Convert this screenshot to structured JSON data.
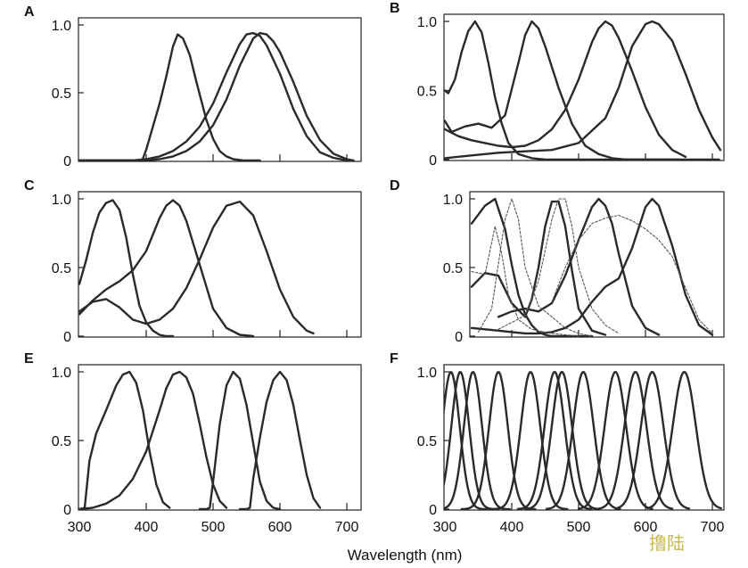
{
  "figure": {
    "xlabel": "Wavelength (nm)",
    "watermark": "撸陆"
  },
  "chart_data": [
    {
      "type": "line",
      "panel": "A",
      "xlim": [
        300,
        710
      ],
      "ylim": [
        0,
        1.0
      ],
      "xticks": [
        300,
        400,
        500,
        600,
        700
      ],
      "yticks": [
        "0",
        "0.5",
        "1.0"
      ],
      "series": [
        {
          "style": "solid",
          "x": [
            300,
            394,
            400,
            410,
            420,
            430,
            440,
            447,
            455,
            465,
            475,
            490,
            500,
            510,
            520,
            530,
            545,
            560,
            570
          ],
          "y": [
            0,
            0,
            0.08,
            0.25,
            0.42,
            0.62,
            0.84,
            0.93,
            0.9,
            0.78,
            0.58,
            0.3,
            0.16,
            0.07,
            0.03,
            0.01,
            0,
            0,
            0
          ]
        },
        {
          "style": "solid",
          "x": [
            300,
            380,
            400,
            420,
            440,
            460,
            480,
            500,
            520,
            540,
            550,
            560,
            570,
            580,
            600,
            620,
            640,
            660,
            680,
            700,
            710
          ],
          "y": [
            0,
            0,
            0.01,
            0.03,
            0.07,
            0.14,
            0.25,
            0.42,
            0.65,
            0.86,
            0.93,
            0.94,
            0.92,
            0.85,
            0.64,
            0.38,
            0.18,
            0.06,
            0.02,
            0,
            0
          ]
        },
        {
          "style": "solid",
          "x": [
            300,
            400,
            420,
            440,
            460,
            480,
            500,
            520,
            540,
            560,
            570,
            580,
            590,
            600,
            620,
            640,
            660,
            680,
            700,
            710
          ],
          "y": [
            0,
            0,
            0.01,
            0.03,
            0.07,
            0.14,
            0.26,
            0.45,
            0.7,
            0.9,
            0.94,
            0.93,
            0.88,
            0.8,
            0.58,
            0.33,
            0.15,
            0.05,
            0.01,
            0
          ]
        }
      ]
    },
    {
      "type": "line",
      "panel": "B",
      "xlim": [
        300,
        710
      ],
      "ylim": [
        0,
        1.0
      ],
      "xticks": [
        300,
        400,
        500,
        600,
        700
      ],
      "yticks": [
        "0",
        "0.5",
        "1.0"
      ],
      "series": [
        {
          "style": "solid",
          "x": [
            300,
            305,
            315,
            325,
            335,
            345,
            355,
            365,
            375,
            385,
            395,
            410,
            430,
            450,
            480,
            710
          ],
          "y": [
            0.5,
            0.48,
            0.58,
            0.78,
            0.93,
            1.0,
            0.92,
            0.7,
            0.45,
            0.26,
            0.12,
            0.04,
            0.01,
            0,
            0,
            0
          ]
        },
        {
          "style": "solid",
          "x": [
            300,
            310,
            330,
            350,
            370,
            390,
            410,
            420,
            430,
            440,
            450,
            470,
            490,
            510,
            530,
            550,
            570,
            590,
            610,
            630,
            650
          ],
          "y": [
            0.28,
            0.2,
            0.24,
            0.26,
            0.23,
            0.32,
            0.7,
            0.9,
            1.0,
            0.95,
            0.82,
            0.52,
            0.26,
            0.1,
            0.04,
            0.01,
            0,
            0,
            0,
            0,
            0
          ]
        },
        {
          "style": "solid",
          "x": [
            300,
            320,
            340,
            360,
            380,
            400,
            420,
            440,
            460,
            480,
            500,
            520,
            530,
            540,
            550,
            560,
            580,
            600,
            620,
            640,
            660
          ],
          "y": [
            0.22,
            0.17,
            0.14,
            0.12,
            0.1,
            0.09,
            0.1,
            0.14,
            0.22,
            0.36,
            0.58,
            0.85,
            0.95,
            1.0,
            0.97,
            0.88,
            0.64,
            0.38,
            0.18,
            0.07,
            0.02
          ]
        },
        {
          "style": "solid",
          "x": [
            300,
            340,
            380,
            420,
            460,
            500,
            540,
            560,
            580,
            600,
            610,
            620,
            640,
            660,
            680,
            700,
            712
          ],
          "y": [
            0.01,
            0.03,
            0.05,
            0.06,
            0.07,
            0.12,
            0.3,
            0.52,
            0.82,
            0.98,
            1.0,
            0.98,
            0.86,
            0.62,
            0.36,
            0.16,
            0.07
          ]
        }
      ]
    },
    {
      "type": "line",
      "panel": "C",
      "xlim": [
        300,
        710
      ],
      "ylim": [
        0,
        1.0
      ],
      "xticks": [
        300,
        400,
        500,
        600,
        700
      ],
      "yticks": [
        "0",
        "0.5",
        "1.0"
      ],
      "series": [
        {
          "style": "solid",
          "x": [
            300,
            310,
            320,
            330,
            340,
            350,
            360,
            370,
            380,
            390,
            400,
            410,
            420,
            430,
            440
          ],
          "y": [
            0.38,
            0.55,
            0.75,
            0.9,
            0.97,
            0.99,
            0.92,
            0.72,
            0.45,
            0.22,
            0.1,
            0.04,
            0.01,
            0,
            0
          ]
        },
        {
          "style": "solid",
          "x": [
            300,
            320,
            340,
            360,
            380,
            400,
            420,
            430,
            440,
            450,
            460,
            480,
            500,
            520,
            540,
            560
          ],
          "y": [
            0.16,
            0.26,
            0.34,
            0.4,
            0.48,
            0.62,
            0.86,
            0.95,
            0.99,
            0.95,
            0.84,
            0.52,
            0.2,
            0.06,
            0.01,
            0
          ]
        },
        {
          "style": "solid",
          "x": [
            300,
            320,
            340,
            360,
            380,
            400,
            420,
            440,
            460,
            480,
            500,
            520,
            540,
            560,
            580,
            600,
            620,
            640,
            650
          ],
          "y": [
            0.18,
            0.25,
            0.27,
            0.21,
            0.12,
            0.09,
            0.12,
            0.2,
            0.35,
            0.56,
            0.79,
            0.95,
            0.98,
            0.88,
            0.62,
            0.34,
            0.14,
            0.04,
            0.02
          ]
        }
      ]
    },
    {
      "type": "line",
      "panel": "D",
      "xlim": [
        300,
        710
      ],
      "ylim": [
        0,
        1.0
      ],
      "xticks": [
        300,
        400,
        500,
        600,
        700
      ],
      "yticks": [
        "0",
        "0.5",
        "1.0"
      ],
      "series": [
        {
          "style": "solid",
          "x": [
            340,
            360,
            375,
            390,
            400,
            410,
            420,
            430,
            440,
            450,
            460,
            480,
            500,
            520
          ],
          "y": [
            0.82,
            0.95,
            1.0,
            0.78,
            0.52,
            0.3,
            0.16,
            0.08,
            0.03,
            0.01,
            0,
            0,
            0,
            0
          ]
        },
        {
          "style": "solid",
          "x": [
            340,
            360,
            380,
            400,
            420,
            430,
            440,
            450,
            460,
            470,
            480,
            490,
            500,
            520,
            540
          ],
          "y": [
            0.36,
            0.46,
            0.44,
            0.24,
            0.14,
            0.27,
            0.5,
            0.8,
            0.98,
            0.98,
            0.8,
            0.48,
            0.2,
            0.04,
            0.01
          ]
        },
        {
          "style": "solid",
          "x": [
            380,
            400,
            420,
            440,
            460,
            480,
            500,
            520,
            530,
            540,
            550,
            560,
            580,
            600,
            620
          ],
          "y": [
            0.14,
            0.18,
            0.2,
            0.18,
            0.24,
            0.44,
            0.7,
            0.94,
            1.0,
            0.95,
            0.82,
            0.6,
            0.22,
            0.06,
            0.01
          ]
        },
        {
          "style": "solid",
          "x": [
            340,
            360,
            380,
            400,
            420,
            440,
            460,
            480,
            500,
            520,
            540,
            560,
            580,
            600,
            610,
            620,
            640,
            660,
            680,
            700
          ],
          "y": [
            0.06,
            0.05,
            0.04,
            0.03,
            0.02,
            0.02,
            0.03,
            0.06,
            0.12,
            0.25,
            0.36,
            0.42,
            0.64,
            0.94,
            1.0,
            0.95,
            0.66,
            0.3,
            0.08,
            0.01
          ]
        },
        {
          "style": "dotted",
          "x": [
            340,
            360,
            375,
            385,
            395,
            410,
            430,
            460,
            500
          ],
          "y": [
            0.47,
            0.45,
            0.8,
            0.6,
            0.3,
            0.12,
            0.05,
            0.02,
            0
          ]
        },
        {
          "style": "dotted",
          "x": [
            350,
            370,
            390,
            400,
            410,
            420,
            440,
            460,
            480,
            500,
            520
          ],
          "y": [
            0.03,
            0.2,
            0.85,
            1.0,
            0.85,
            0.5,
            0.22,
            0.14,
            0.06,
            0.02,
            0
          ]
        },
        {
          "style": "dotted",
          "x": [
            380,
            420,
            440,
            460,
            470,
            480,
            490,
            500,
            520,
            540,
            560
          ],
          "y": [
            0.05,
            0.15,
            0.4,
            0.85,
            1.0,
            1.0,
            0.8,
            0.5,
            0.2,
            0.08,
            0.02
          ]
        },
        {
          "style": "dotted",
          "x": [
            460,
            480,
            500,
            520,
            540,
            560,
            580,
            600,
            620,
            640,
            660,
            680,
            700
          ],
          "y": [
            0.25,
            0.5,
            0.7,
            0.82,
            0.86,
            0.88,
            0.84,
            0.78,
            0.7,
            0.58,
            0.35,
            0.12,
            0.02
          ]
        }
      ]
    },
    {
      "type": "line",
      "panel": "E",
      "xlim": [
        300,
        710
      ],
      "ylim": [
        0,
        1.0
      ],
      "xticks": [
        300,
        400,
        500,
        600,
        700
      ],
      "yticks": [
        "0",
        "0.5",
        "1.0"
      ],
      "xticklabels": [
        "300",
        "400",
        "500",
        "600",
        "700"
      ],
      "series": [
        {
          "style": "solid",
          "x": [
            300,
            308,
            315,
            325,
            340,
            355,
            365,
            375,
            385,
            395,
            405,
            415,
            425,
            435
          ],
          "y": [
            0,
            0.01,
            0.35,
            0.55,
            0.72,
            0.9,
            0.98,
            1.0,
            0.92,
            0.72,
            0.42,
            0.18,
            0.05,
            0.01
          ]
        },
        {
          "style": "solid",
          "x": [
            300,
            320,
            340,
            360,
            380,
            400,
            420,
            430,
            440,
            450,
            460,
            470,
            480,
            490,
            500,
            510,
            520
          ],
          "y": [
            0,
            0.01,
            0.04,
            0.1,
            0.22,
            0.42,
            0.72,
            0.88,
            0.98,
            1.0,
            0.96,
            0.84,
            0.62,
            0.38,
            0.18,
            0.06,
            0.01
          ]
        },
        {
          "style": "solid",
          "x": [
            480,
            490,
            495,
            500,
            510,
            520,
            530,
            540,
            550,
            560,
            570,
            580,
            590,
            600
          ],
          "y": [
            0,
            0,
            0.01,
            0.2,
            0.62,
            0.9,
            1.0,
            0.95,
            0.76,
            0.48,
            0.2,
            0.06,
            0.01,
            0
          ]
        },
        {
          "style": "solid",
          "x": [
            540,
            550,
            555,
            560,
            570,
            580,
            590,
            600,
            610,
            620,
            630,
            640,
            650,
            660
          ],
          "y": [
            0,
            0,
            0.01,
            0.22,
            0.52,
            0.78,
            0.94,
            1.0,
            0.94,
            0.76,
            0.5,
            0.25,
            0.08,
            0.01
          ]
        }
      ]
    },
    {
      "type": "line",
      "panel": "F",
      "xlim": [
        300,
        710
      ],
      "ylim": [
        0,
        1.0
      ],
      "xticks": [
        300,
        400,
        500,
        600,
        700
      ],
      "yticks": [
        "0",
        "0.5",
        "1.0"
      ],
      "xticklabels": [
        "300",
        "400",
        "500",
        "600",
        "700"
      ],
      "peaks": [
        309,
        323,
        342,
        380,
        428,
        464,
        475,
        507,
        555,
        585,
        610,
        658
      ],
      "series": []
    }
  ]
}
